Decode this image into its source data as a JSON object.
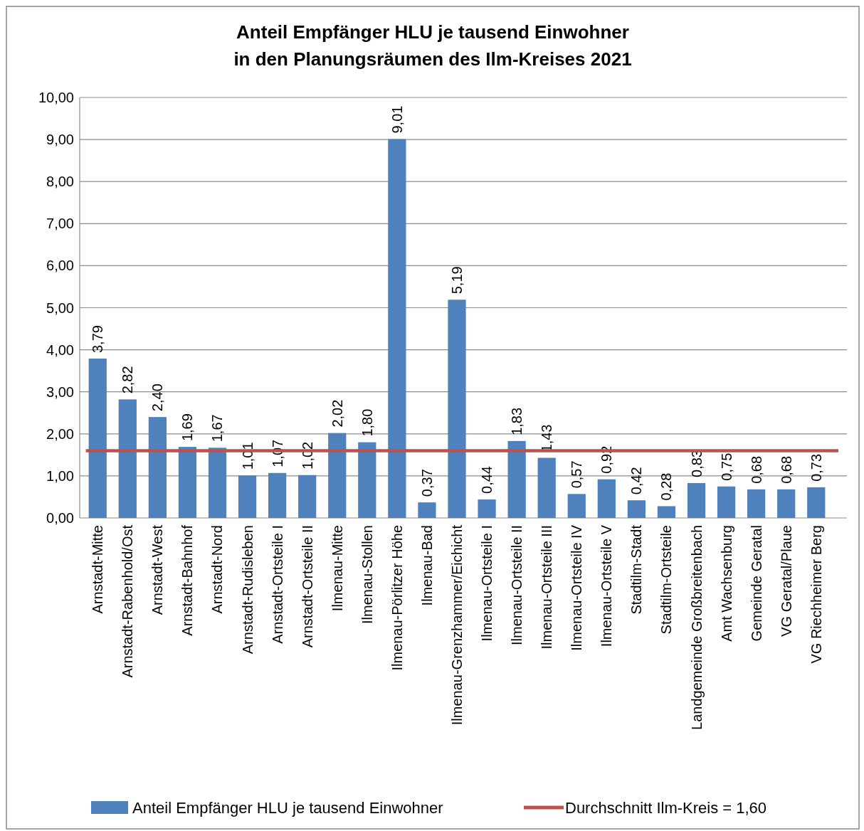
{
  "chart_data": {
    "type": "bar",
    "title": "Anteil Empfänger HLU je tausend Einwohner\nin den Planungsräumen des Ilm-Kreises 2021",
    "categories": [
      "Arnstadt-Mitte",
      "Arnstadt-Rabenhold/Ost",
      "Arnstadt-West",
      "Arnstadt-Bahnhof",
      "Arnstadt-Nord",
      "Arnstadt-Rudisleben",
      "Arnstadt-Ortsteile I",
      "Arnstadt-Ortsteile II",
      "Ilmenau-Mitte",
      "Ilmenau-Stollen",
      "Ilmenau-Pörlitzer Höhe",
      "Ilmenau-Bad",
      "Ilmenau-Grenzhammer/Eichicht",
      "Ilmenau-Ortsteile I",
      "Ilmenau-Ortsteile II",
      "Ilmenau-Ortsteile III",
      "Ilmenau-Ortsteile IV",
      "Ilmenau-Ortsteile V",
      "Stadtilm-Stadt",
      "Stadtilm-Ortsteile",
      "Landgemeinde Großbreitenbach",
      "Amt Wachsenburg",
      "Gemeinde Geratal",
      "VG Geratal/Plaue",
      "VG Riechheimer Berg"
    ],
    "series": [
      {
        "name": "Anteil Empfänger HLU je tausend Einwohner",
        "color": "#4f81bd",
        "values": [
          3.79,
          2.82,
          2.4,
          1.69,
          1.67,
          1.01,
          1.07,
          1.02,
          2.02,
          1.8,
          9.01,
          0.37,
          5.19,
          0.44,
          1.83,
          1.43,
          0.57,
          0.92,
          0.42,
          0.28,
          0.83,
          0.75,
          0.68,
          0.68,
          0.73
        ],
        "value_labels": [
          "3,79",
          "2,82",
          "2,40",
          "1,69",
          "1,67",
          "1,01",
          "1,07",
          "1,02",
          "2,02",
          "1,80",
          "9,01",
          "0,37",
          "5,19",
          "0,44",
          "1,83",
          "1,43",
          "0,57",
          "0,92",
          "0,42",
          "0,28",
          "0,83",
          "0,75",
          "0,68",
          "0,68",
          "0,73"
        ]
      }
    ],
    "ylim": [
      0,
      10
    ],
    "yticks": [
      {
        "value": 0,
        "label": "0,00"
      },
      {
        "value": 1,
        "label": "1,00"
      },
      {
        "value": 2,
        "label": "2,00"
      },
      {
        "value": 3,
        "label": "3,00"
      },
      {
        "value": 4,
        "label": "4,00"
      },
      {
        "value": 5,
        "label": "5,00"
      },
      {
        "value": 6,
        "label": "6,00"
      },
      {
        "value": 7,
        "label": "7,00"
      },
      {
        "value": 8,
        "label": "8,00"
      },
      {
        "value": 9,
        "label": "9,00"
      },
      {
        "value": 10,
        "label": "10,00"
      }
    ],
    "ref_lines": [
      {
        "axis": "y",
        "value": 1.6,
        "label": "Durchschnitt Ilm-Kreis = 1,60",
        "color": "#c0504d"
      }
    ],
    "grid": "y",
    "legend": "bottom"
  }
}
